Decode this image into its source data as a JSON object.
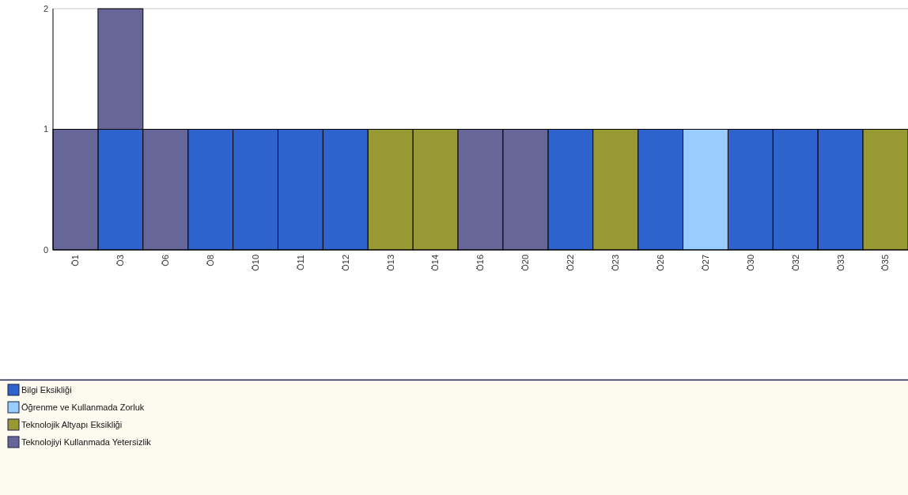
{
  "chart_data": {
    "type": "bar",
    "stacked": true,
    "categories": [
      "Ö1",
      "Ö3",
      "Ö6",
      "Ö8",
      "Ö10",
      "Ö11",
      "Ö12",
      "Ö13",
      "Ö14",
      "Ö16",
      "Ö20",
      "Ö22",
      "Ö23",
      "Ö26",
      "Ö27",
      "Ö30",
      "Ö32",
      "Ö33",
      "Ö35"
    ],
    "series": [
      {
        "name": "Bilgi Eksikliği",
        "color": "#2e62cc",
        "values": [
          0,
          1,
          0,
          1,
          1,
          1,
          1,
          0,
          0,
          0,
          0,
          1,
          0,
          1,
          0,
          1,
          1,
          1,
          0
        ]
      },
      {
        "name": "Öğrenme ve Kullanmada Zorluk",
        "color": "#99ccff",
        "values": [
          0,
          0,
          0,
          0,
          0,
          0,
          0,
          0,
          0,
          0,
          0,
          0,
          0,
          0,
          1,
          0,
          0,
          0,
          0
        ]
      },
      {
        "name": "Teknolojik Altyapı Eksikliği",
        "color": "#999933",
        "values": [
          0,
          0,
          0,
          0,
          0,
          0,
          0,
          1,
          1,
          0,
          0,
          0,
          1,
          0,
          0,
          0,
          0,
          0,
          1
        ]
      },
      {
        "name": "Teknolojiyi Kullanmada Yetersizlik",
        "color": "#666699",
        "values": [
          1,
          1,
          1,
          0,
          0,
          0,
          0,
          0,
          0,
          1,
          1,
          0,
          0,
          0,
          0,
          0,
          0,
          0,
          0
        ]
      }
    ],
    "ylim": [
      0,
      2
    ],
    "yticks": [
      0,
      1,
      2
    ],
    "legend": "bottom"
  }
}
